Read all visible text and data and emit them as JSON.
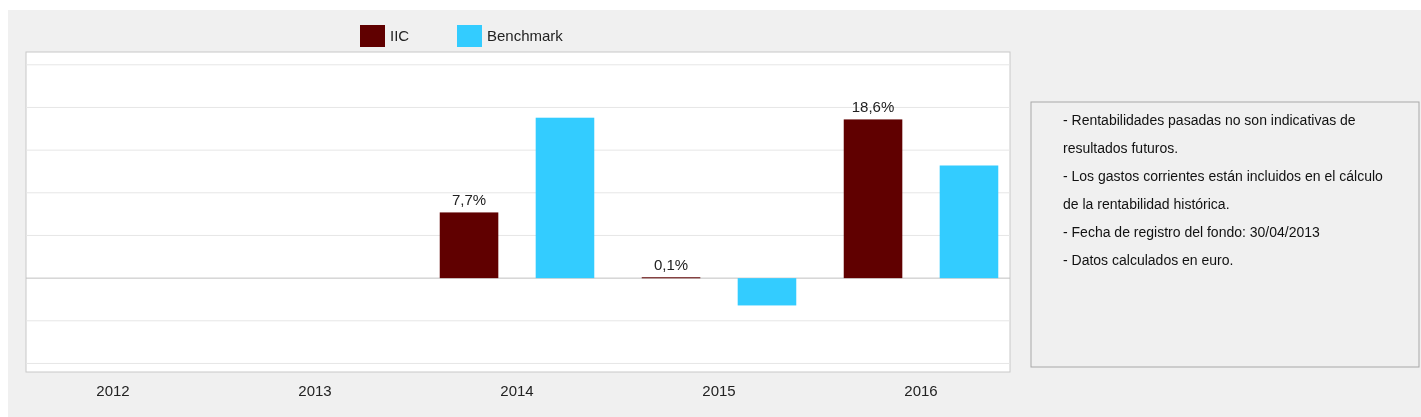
{
  "chart_data": {
    "type": "bar",
    "categories": [
      "2012",
      "2013",
      "2014",
      "2015",
      "2016"
    ],
    "series": [
      {
        "name": "IIC",
        "color": "#600000",
        "values": [
          null,
          null,
          7.7,
          0.1,
          18.6
        ],
        "value_labels": [
          null,
          null,
          "7,7%",
          "0,1%",
          "18,6%"
        ]
      },
      {
        "name": "Benchmark",
        "color": "#33ccff",
        "values": [
          null,
          null,
          18.8,
          -3.2,
          13.2
        ]
      }
    ],
    "ylim": [
      -11,
      26.5
    ],
    "yticks": [
      {
        "value": -10,
        "label": null
      },
      {
        "value": -5,
        "label": null
      },
      {
        "value": 0,
        "label": null
      },
      {
        "value": 5,
        "label": null
      },
      {
        "value": 10,
        "label": null
      },
      {
        "value": 15,
        "label": null
      },
      {
        "value": 20,
        "label": null
      },
      {
        "value": 25,
        "label": null
      }
    ],
    "grid": "y",
    "legend": "top",
    "tick_labels": "x",
    "annotations": [
      "- Rentabilidades pasadas no son indicativas de resultados futuros.",
      "- Los gastos corrientes están incluidos en el cálculo de la rentabilidad histórica.",
      "- Fecha de registro del fondo: 30/04/2013",
      "- Datos calculados en euro."
    ]
  }
}
